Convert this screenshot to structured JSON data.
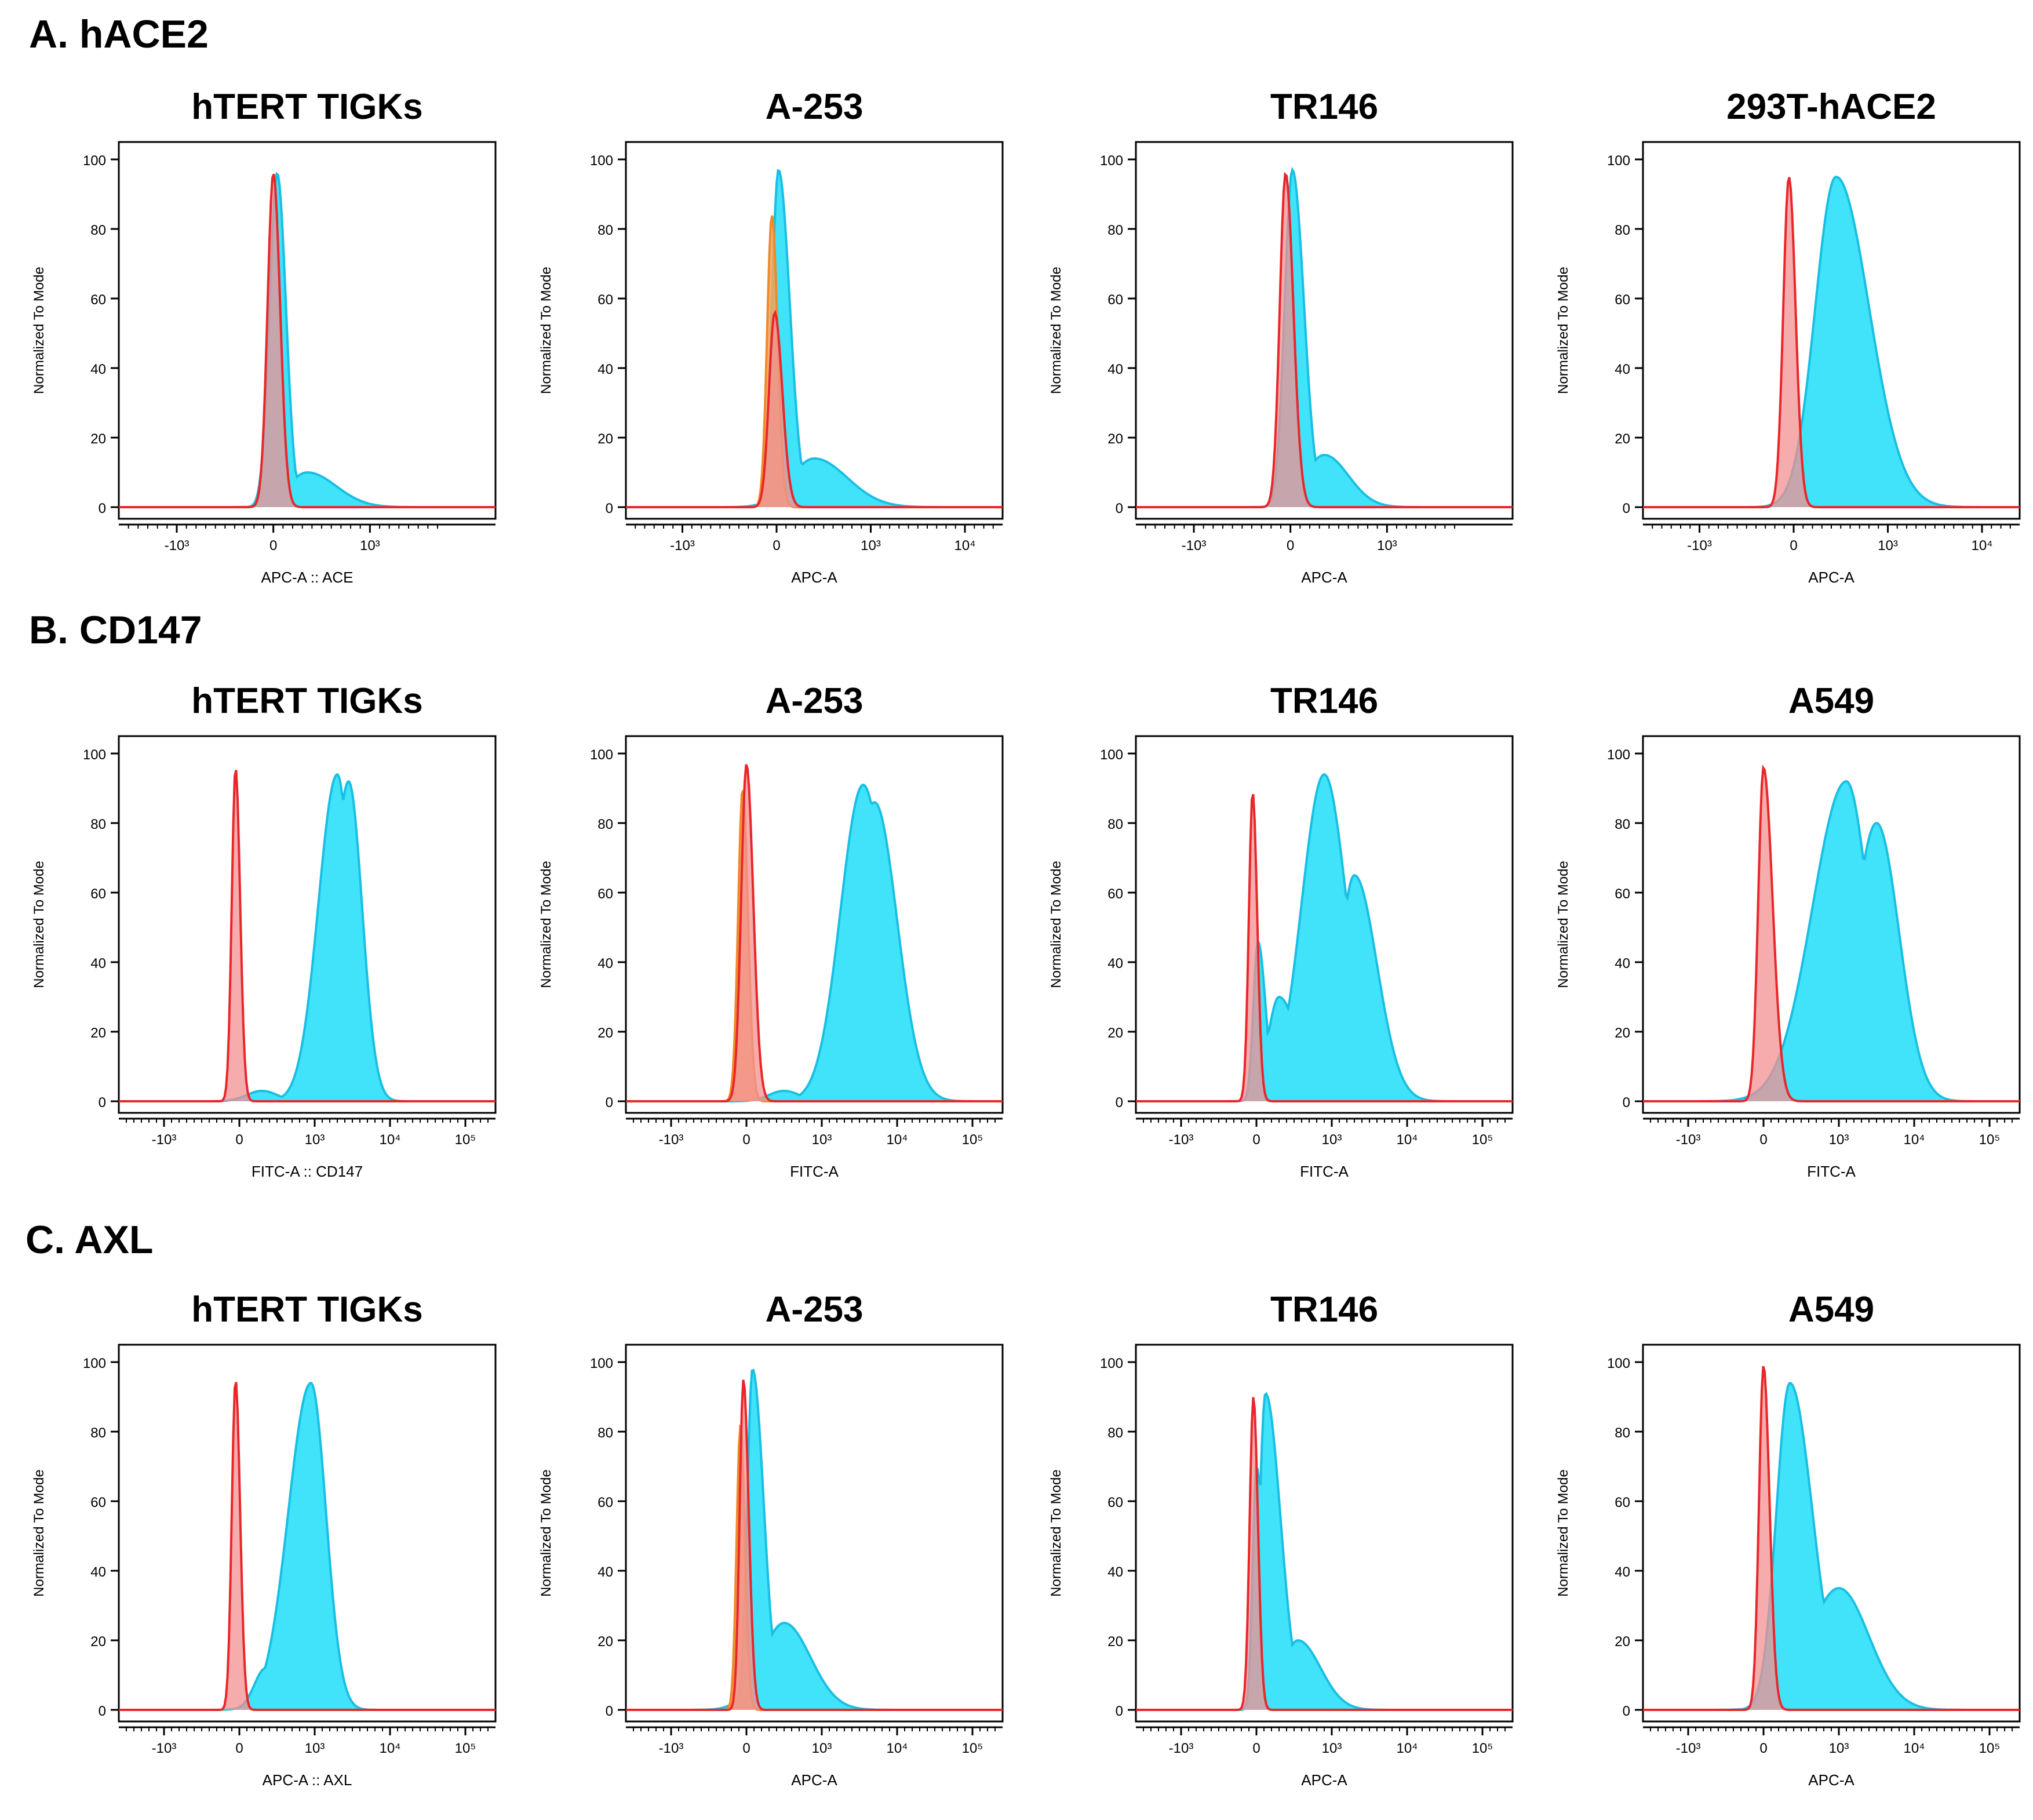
{
  "figure": {
    "rows": [
      {
        "label": "A. hACE2"
      },
      {
        "label": "B. CD147"
      },
      {
        "label": "C. AXL"
      }
    ]
  },
  "colors": {
    "test_fill": "#36e1f9",
    "test_line": "#19bfe3",
    "control_fill": "#f39092",
    "control_line": "#e8272a",
    "isotype_fill": "#f7a45b",
    "isotype_line": "#ee8a2a",
    "axis": "#000000"
  },
  "chart_data": [
    {
      "type": "area",
      "title": "hTERT TIGKs",
      "xlabel": "APC-A :: ACE",
      "ylabel": "Normalized To Mode",
      "ylim": [
        0,
        100
      ],
      "xticks": [
        "-10³",
        "0",
        "10³"
      ],
      "yticks": [
        "0",
        "20",
        "40",
        "60",
        "80",
        "100"
      ],
      "series": [
        {
          "kind": "control",
          "peaks": [
            {
              "x": 0.0,
              "h": 96,
              "sl": 0.06,
              "sr": 0.07
            }
          ],
          "tail": []
        },
        {
          "kind": "test",
          "peaks": [
            {
              "x": 0.04,
              "h": 96,
              "sl": 0.08,
              "sr": 0.09
            }
          ],
          "tail": [
            {
              "x": 0.35,
              "h": 10,
              "sl": 0.2,
              "sr": 0.3
            }
          ]
        }
      ]
    },
    {
      "type": "area",
      "title": "A-253",
      "xlabel": "APC-A",
      "ylabel": "Normalized To Mode",
      "ylim": [
        0,
        100
      ],
      "xticks": [
        "-10³",
        "0",
        "10³",
        "10⁴"
      ],
      "yticks": [
        "0",
        "20",
        "40",
        "60",
        "80",
        "100"
      ],
      "series": [
        {
          "kind": "isotype",
          "peaks": [
            {
              "x": -0.05,
              "h": 84,
              "sl": 0.05,
              "sr": 0.06
            }
          ],
          "tail": []
        },
        {
          "kind": "control",
          "peaks": [
            {
              "x": -0.02,
              "h": 56,
              "sl": 0.06,
              "sr": 0.08
            }
          ],
          "tail": []
        },
        {
          "kind": "test",
          "peaks": [
            {
              "x": 0.02,
              "h": 97,
              "sl": 0.07,
              "sr": 0.12
            }
          ],
          "tail": [
            {
              "x": 0.4,
              "h": 14,
              "sl": 0.25,
              "sr": 0.35
            }
          ]
        }
      ]
    },
    {
      "type": "area",
      "title": "TR146",
      "xlabel": "APC-A",
      "ylabel": "Normalized To Mode",
      "ylim": [
        0,
        100
      ],
      "xticks": [
        "-10³",
        "0",
        "10³"
      ],
      "yticks": [
        "0",
        "20",
        "40",
        "60",
        "80",
        "100"
      ],
      "series": [
        {
          "kind": "control",
          "peaks": [
            {
              "x": -0.05,
              "h": 96,
              "sl": 0.06,
              "sr": 0.08
            }
          ],
          "tail": []
        },
        {
          "kind": "test",
          "peaks": [
            {
              "x": 0.02,
              "h": 97,
              "sl": 0.08,
              "sr": 0.12
            }
          ],
          "tail": [
            {
              "x": 0.35,
              "h": 15,
              "sl": 0.2,
              "sr": 0.25
            }
          ]
        }
      ]
    },
    {
      "type": "area",
      "title": "293T-hACE2",
      "xlabel": "APC-A",
      "ylabel": "Normalized To Mode",
      "ylim": [
        0,
        100
      ],
      "xticks": [
        "-10³",
        "0",
        "10³",
        "10⁴"
      ],
      "yticks": [
        "0",
        "20",
        "40",
        "60",
        "80",
        "100"
      ],
      "series": [
        {
          "kind": "control",
          "peaks": [
            {
              "x": -0.05,
              "h": 95,
              "sl": 0.06,
              "sr": 0.07
            }
          ],
          "tail": []
        },
        {
          "kind": "test",
          "peaks": [
            {
              "x": 0.45,
              "h": 95,
              "sl": 0.22,
              "sr": 0.35
            }
          ],
          "tail": []
        }
      ]
    },
    {
      "type": "area",
      "title": "hTERT TIGKs",
      "xlabel": "FITC-A :: CD147",
      "ylabel": "Normalized To Mode",
      "ylim": [
        0,
        100
      ],
      "xticks": [
        "-10³",
        "0",
        "10³",
        "10⁴",
        "10⁵"
      ],
      "yticks": [
        "0",
        "20",
        "40",
        "60",
        "80",
        "100"
      ],
      "series": [
        {
          "kind": "control",
          "peaks": [
            {
              "x": -0.05,
              "h": 96,
              "sl": 0.05,
              "sr": 0.06
            }
          ],
          "tail": []
        },
        {
          "kind": "test",
          "peaks": [
            {
              "x": 1.3,
              "h": 94,
              "sl": 0.25,
              "sr": 0.18
            },
            {
              "x": 1.45,
              "h": 92,
              "sl": 0.2,
              "sr": 0.18
            }
          ],
          "tail": [
            {
              "x": 0.3,
              "h": 3,
              "sl": 0.2,
              "sr": 0.2
            }
          ]
        }
      ]
    },
    {
      "type": "area",
      "title": "A-253",
      "xlabel": "FITC-A",
      "ylabel": "Normalized To Mode",
      "ylim": [
        0,
        100
      ],
      "xticks": [
        "-10³",
        "0",
        "10³",
        "10⁴",
        "10⁵"
      ],
      "yticks": [
        "0",
        "20",
        "40",
        "60",
        "80",
        "100"
      ],
      "series": [
        {
          "kind": "isotype",
          "peaks": [
            {
              "x": -0.05,
              "h": 90,
              "sl": 0.06,
              "sr": 0.07
            }
          ],
          "tail": []
        },
        {
          "kind": "control",
          "peaks": [
            {
              "x": 0.0,
              "h": 97,
              "sl": 0.07,
              "sr": 0.09
            }
          ],
          "tail": []
        },
        {
          "kind": "test",
          "peaks": [
            {
              "x": 1.55,
              "h": 91,
              "sl": 0.3,
              "sr": 0.3
            },
            {
              "x": 1.7,
              "h": 86,
              "sl": 0.3,
              "sr": 0.3
            }
          ],
          "tail": [
            {
              "x": 0.5,
              "h": 3,
              "sl": 0.2,
              "sr": 0.2
            }
          ]
        }
      ]
    },
    {
      "type": "area",
      "title": "TR146",
      "xlabel": "FITC-A",
      "ylabel": "Normalized To Mode",
      "ylim": [
        0,
        100
      ],
      "xticks": [
        "-10³",
        "0",
        "10³",
        "10⁴",
        "10⁵"
      ],
      "yticks": [
        "0",
        "20",
        "40",
        "60",
        "80",
        "100"
      ],
      "series": [
        {
          "kind": "control",
          "peaks": [
            {
              "x": -0.05,
              "h": 89,
              "sl": 0.05,
              "sr": 0.06
            }
          ],
          "tail": []
        },
        {
          "kind": "test",
          "peaks": [
            {
              "x": 0.02,
              "h": 46,
              "sl": 0.06,
              "sr": 0.1
            },
            {
              "x": 0.9,
              "h": 94,
              "sl": 0.3,
              "sr": 0.3
            },
            {
              "x": 1.3,
              "h": 65,
              "sl": 0.2,
              "sr": 0.3
            }
          ],
          "tail": [
            {
              "x": 0.3,
              "h": 30,
              "sl": 0.15,
              "sr": 0.25
            }
          ]
        }
      ]
    },
    {
      "type": "area",
      "title": "A549",
      "xlabel": "FITC-A",
      "ylabel": "Normalized To Mode",
      "ylim": [
        0,
        100
      ],
      "xticks": [
        "-10³",
        "0",
        "10³",
        "10⁴",
        "10⁵"
      ],
      "yticks": [
        "0",
        "20",
        "40",
        "60",
        "80",
        "100"
      ],
      "series": [
        {
          "kind": "control",
          "peaks": [
            {
              "x": 0.0,
              "h": 96,
              "sl": 0.07,
              "sr": 0.12
            }
          ],
          "tail": []
        },
        {
          "kind": "test",
          "peaks": [
            {
              "x": 1.1,
              "h": 92,
              "sl": 0.45,
              "sr": 0.3
            },
            {
              "x": 1.5,
              "h": 80,
              "sl": 0.3,
              "sr": 0.3
            }
          ],
          "tail": []
        }
      ]
    },
    {
      "type": "area",
      "title": "hTERT TIGKs",
      "xlabel": "APC-A :: AXL",
      "ylabel": "Normalized To Mode",
      "ylim": [
        0,
        100
      ],
      "xticks": [
        "-10³",
        "0",
        "10³",
        "10⁴",
        "10⁵"
      ],
      "yticks": [
        "0",
        "20",
        "40",
        "60",
        "80",
        "100"
      ],
      "series": [
        {
          "kind": "control",
          "peaks": [
            {
              "x": -0.05,
              "h": 95,
              "sl": 0.05,
              "sr": 0.06
            }
          ],
          "tail": []
        },
        {
          "kind": "test",
          "peaks": [
            {
              "x": 0.95,
              "h": 94,
              "sl": 0.3,
              "sr": 0.2
            }
          ],
          "tail": [
            {
              "x": 0.35,
              "h": 12,
              "sl": 0.15,
              "sr": 0.2
            }
          ]
        }
      ]
    },
    {
      "type": "area",
      "title": "A-253",
      "xlabel": "APC-A",
      "ylabel": "Normalized To Mode",
      "ylim": [
        0,
        100
      ],
      "xticks": [
        "-10³",
        "0",
        "10³",
        "10⁴",
        "10⁵"
      ],
      "yticks": [
        "0",
        "20",
        "40",
        "60",
        "80",
        "100"
      ],
      "series": [
        {
          "kind": "isotype",
          "peaks": [
            {
              "x": -0.08,
              "h": 82,
              "sl": 0.05,
              "sr": 0.06
            }
          ],
          "tail": []
        },
        {
          "kind": "control",
          "peaks": [
            {
              "x": -0.04,
              "h": 95,
              "sl": 0.05,
              "sr": 0.07
            }
          ],
          "tail": []
        },
        {
          "kind": "test",
          "peaks": [
            {
              "x": 0.08,
              "h": 98,
              "sl": 0.07,
              "sr": 0.15
            }
          ],
          "tail": [
            {
              "x": 0.5,
              "h": 25,
              "sl": 0.3,
              "sr": 0.35
            }
          ]
        }
      ]
    },
    {
      "type": "area",
      "title": "TR146",
      "xlabel": "APC-A",
      "ylabel": "Normalized To Mode",
      "ylim": [
        0,
        100
      ],
      "xticks": [
        "-10³",
        "0",
        "10³",
        "10⁴",
        "10⁵"
      ],
      "yticks": [
        "0",
        "20",
        "40",
        "60",
        "80",
        "100"
      ],
      "series": [
        {
          "kind": "control",
          "peaks": [
            {
              "x": -0.04,
              "h": 90,
              "sl": 0.05,
              "sr": 0.06
            }
          ],
          "tail": []
        },
        {
          "kind": "test",
          "peaks": [
            {
              "x": 0.0,
              "h": 70,
              "sl": 0.05,
              "sr": 0.1
            },
            {
              "x": 0.12,
              "h": 91,
              "sl": 0.08,
              "sr": 0.2
            }
          ],
          "tail": [
            {
              "x": 0.55,
              "h": 20,
              "sl": 0.2,
              "sr": 0.3
            }
          ]
        }
      ]
    },
    {
      "type": "area",
      "title": "A549",
      "xlabel": "APC-A",
      "ylabel": "Normalized To Mode",
      "ylim": [
        0,
        100
      ],
      "xticks": [
        "-10³",
        "0",
        "10³",
        "10⁴",
        "10⁵"
      ],
      "yticks": [
        "0",
        "20",
        "40",
        "60",
        "80",
        "100"
      ],
      "series": [
        {
          "kind": "control",
          "peaks": [
            {
              "x": 0.0,
              "h": 99,
              "sl": 0.06,
              "sr": 0.08
            }
          ],
          "tail": []
        },
        {
          "kind": "test",
          "peaks": [
            {
              "x": 0.35,
              "h": 94,
              "sl": 0.18,
              "sr": 0.3
            }
          ],
          "tail": [
            {
              "x": 1.0,
              "h": 35,
              "sl": 0.4,
              "sr": 0.4
            }
          ]
        }
      ]
    }
  ]
}
